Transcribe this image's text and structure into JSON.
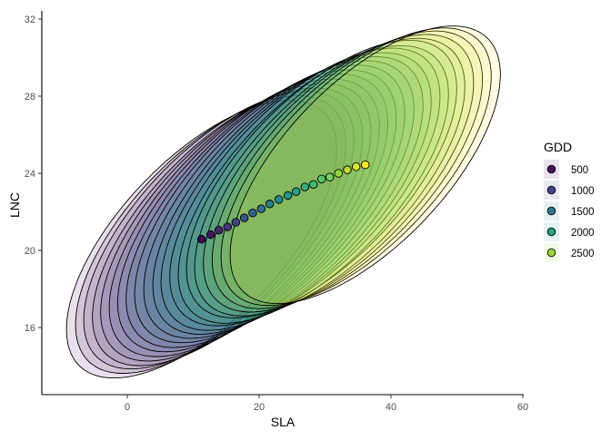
{
  "chart_data": {
    "type": "scatter",
    "xlabel": "SLA",
    "ylabel": "LNC",
    "xlim": [
      -13,
      61
    ],
    "ylim": [
      12.7,
      32.6
    ],
    "x_ticks": [
      0,
      20,
      40,
      60
    ],
    "y_ticks": [
      16,
      20,
      24,
      28,
      32
    ],
    "grid": false,
    "legend": {
      "title": "GDD",
      "placement": "right",
      "entries": [
        {
          "label": "500",
          "color": "#46085c"
        },
        {
          "label": "1000",
          "color": "#414487"
        },
        {
          "label": "1500",
          "color": "#2a788e"
        },
        {
          "label": "2000",
          "color": "#22a884"
        },
        {
          "label": "2500",
          "color": "#a0da39"
        }
      ]
    },
    "colormap": "viridis",
    "viridis_anchors": [
      "#440154",
      "#482878",
      "#3e4a89",
      "#31688e",
      "#26828e",
      "#1f9e89",
      "#35b779",
      "#6ece58",
      "#b5de2b",
      "#fde725"
    ],
    "points": [
      {
        "x": 11.27,
        "y": 20.58
      },
      {
        "x": 12.65,
        "y": 20.82
      },
      {
        "x": 13.89,
        "y": 21.05
      },
      {
        "x": 15.21,
        "y": 21.22
      },
      {
        "x": 16.46,
        "y": 21.46
      },
      {
        "x": 17.75,
        "y": 21.69
      },
      {
        "x": 19.03,
        "y": 21.94
      },
      {
        "x": 20.32,
        "y": 22.16
      },
      {
        "x": 21.61,
        "y": 22.41
      },
      {
        "x": 22.99,
        "y": 22.64
      },
      {
        "x": 24.37,
        "y": 22.85
      },
      {
        "x": 25.61,
        "y": 23.05
      },
      {
        "x": 26.94,
        "y": 23.29
      },
      {
        "x": 28.23,
        "y": 23.42
      },
      {
        "x": 29.48,
        "y": 23.7
      },
      {
        "x": 30.72,
        "y": 23.8
      },
      {
        "x": 32.04,
        "y": 24.0
      },
      {
        "x": 33.38,
        "y": 24.18
      },
      {
        "x": 34.72,
        "y": 24.34
      },
      {
        "x": 36.1,
        "y": 24.44
      }
    ],
    "ellipse": {
      "half_extent_sla": 20.5,
      "half_extent_lnc": 7.2,
      "correlation": 0.65,
      "fill_alpha": 0.12,
      "stroke": "#000000"
    }
  }
}
